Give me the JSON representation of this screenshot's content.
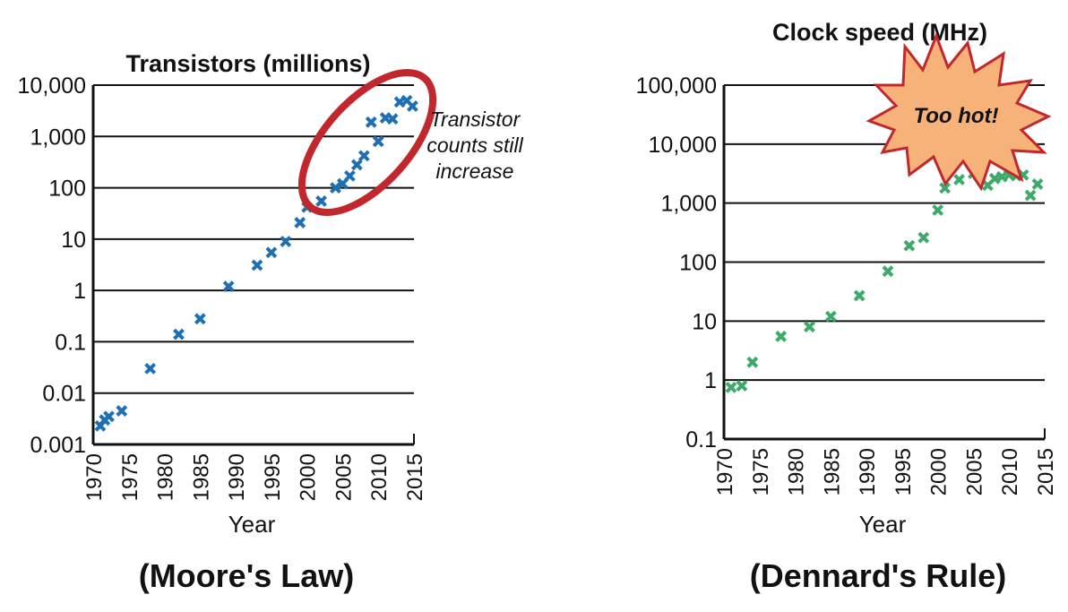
{
  "chart_data": [
    {
      "type": "scatter",
      "title": "Transistors (millions)",
      "subtitle": "",
      "xlabel": "Year",
      "ylabel": "",
      "yscale": "log",
      "xlim": [
        1970,
        2015
      ],
      "ylim": [
        0.001,
        10000
      ],
      "x_ticks": [
        "1970",
        "1975",
        "1980",
        "1985",
        "1990",
        "1995",
        "2000",
        "2005",
        "2010",
        "2015"
      ],
      "y_ticks": [
        "0.001",
        "0.01",
        "0.1",
        "1",
        "10",
        "100",
        "1,000",
        "10,000"
      ],
      "grid": "horizontal",
      "marker": "x",
      "color": "#1f6fb5",
      "caption": "(Moore's Law)",
      "annotation": {
        "text_lines": [
          "Transistor",
          "counts still",
          "increase"
        ],
        "shape": "ellipse",
        "color": "#c0282d",
        "region_x": [
          2003,
          2015
        ],
        "region_y": [
          80,
          6000
        ]
      },
      "series": [
        {
          "x": [
            1971,
            1971.6,
            1972.2,
            1974,
            1978,
            1982,
            1985,
            1989,
            1993,
            1995,
            1997,
            1999,
            2000,
            2002,
            2004,
            2005,
            2006,
            2007,
            2008,
            2009,
            2010,
            2011,
            2012,
            2013,
            2014,
            2014.8
          ],
          "y": [
            0.0023,
            0.003,
            0.0035,
            0.0045,
            0.03,
            0.14,
            0.28,
            1.2,
            3.1,
            5.5,
            9,
            21,
            42,
            55,
            100,
            120,
            170,
            280,
            420,
            1900,
            800,
            2300,
            2200,
            4700,
            5000,
            3900
          ]
        }
      ]
    },
    {
      "type": "scatter",
      "title": "Clock speed (MHz)",
      "subtitle": "",
      "xlabel": "Year",
      "ylabel": "",
      "yscale": "log",
      "xlim": [
        1970,
        2015
      ],
      "ylim": [
        0.1,
        100000
      ],
      "x_ticks": [
        "1970",
        "1975",
        "1980",
        "1985",
        "1990",
        "1995",
        "2000",
        "2005",
        "2010",
        "2015"
      ],
      "y_ticks": [
        "0.1",
        "1",
        "10",
        "100",
        "1,000",
        "10,000",
        "100,000"
      ],
      "grid": "horizontal",
      "marker": "x",
      "color": "#3daa6a",
      "caption": "(Dennard's Rule)",
      "annotation": {
        "text": "Too hot!",
        "shape": "starburst",
        "fill": "#f7b27a",
        "stroke": "#c0282d",
        "anchor_x": 2009,
        "anchor_y": 20000
      },
      "series": [
        {
          "x": [
            1971,
            1972.5,
            1974,
            1978,
            1982,
            1985,
            1989,
            1993,
            1996,
            1998,
            2000,
            2001,
            2003,
            2005,
            2007,
            2008,
            2009,
            2010,
            2011,
            2012,
            2013,
            2014
          ],
          "y": [
            0.75,
            0.8,
            2,
            5.5,
            8,
            12,
            27,
            70,
            190,
            260,
            760,
            1800,
            2500,
            3200,
            2000,
            2600,
            2800,
            3000,
            2900,
            3000,
            1350,
            2100
          ]
        }
      ]
    }
  ]
}
